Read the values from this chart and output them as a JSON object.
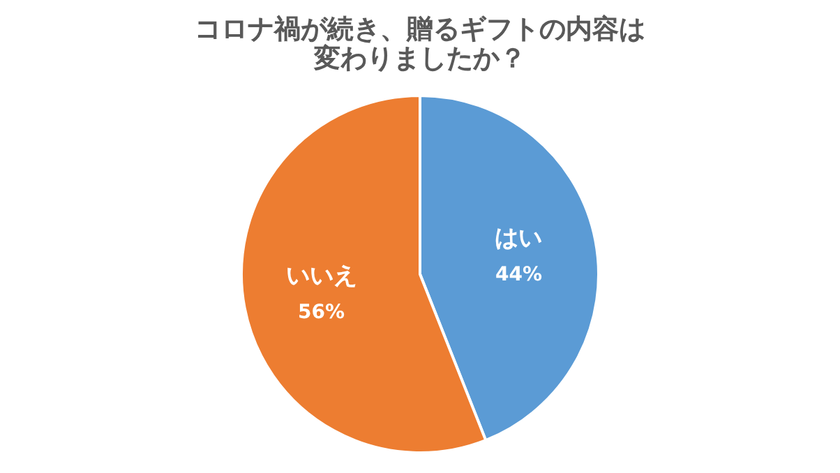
{
  "chart_data": {
    "type": "pie",
    "title": "コロナ禍が続き、贈るギフトの内容は変わりましたか？",
    "categories": [
      "はい",
      "いいえ"
    ],
    "values": [
      44,
      56
    ],
    "colors": [
      "#5b9bd5",
      "#ed7d31"
    ],
    "value_labels": [
      "44%",
      "56%"
    ],
    "legend": false
  }
}
